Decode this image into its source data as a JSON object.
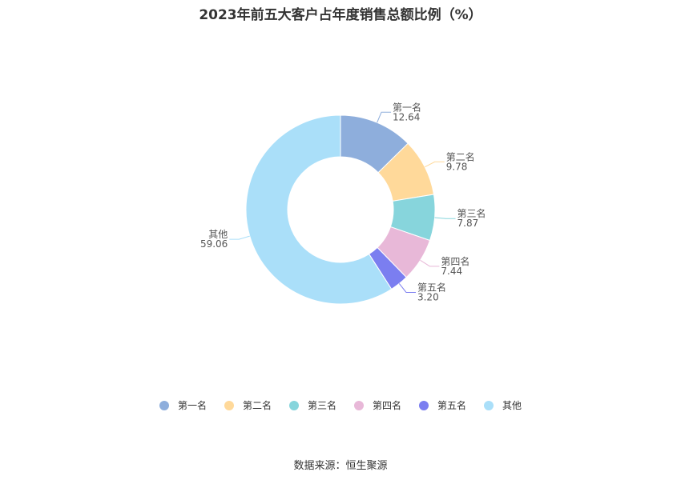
{
  "chart_data": {
    "type": "pie",
    "variant": "donut",
    "title": "2023年前五大客户占年度销售总额比例（%）",
    "categories": [
      "第一名",
      "第二名",
      "第三名",
      "第四名",
      "第五名",
      "其他"
    ],
    "values": [
      12.64,
      9.78,
      7.87,
      7.44,
      3.2,
      59.06
    ],
    "value_labels": [
      "12.64",
      "9.78",
      "7.87",
      "7.44",
      "3.20",
      "59.06"
    ],
    "colors": [
      "#8eaedc",
      "#ffd99a",
      "#87d5dc",
      "#e8b8d8",
      "#7b7ef0",
      "#aadff9"
    ],
    "legend_position": "bottom"
  },
  "footer": {
    "source": "数据来源：恒生聚源"
  }
}
